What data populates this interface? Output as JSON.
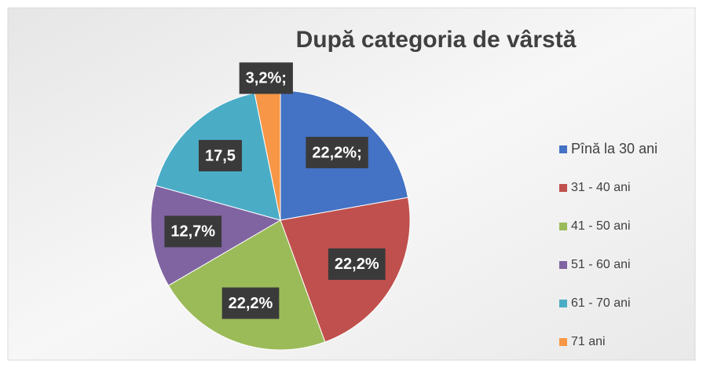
{
  "chart_data": {
    "type": "pie",
    "title": "După categoria de vârstă",
    "categories": [
      "Pînă la 30 ani",
      "31 - 40 ani",
      "41 - 50 ani",
      "51 - 60 ani",
      "61 - 70 ani",
      "71 ani"
    ],
    "values": [
      22.2,
      22.2,
      22.2,
      12.7,
      17.5,
      3.2
    ],
    "value_labels": [
      "22,2%;",
      "22,2%",
      "22,2%",
      "12,7%",
      "17,5",
      "3,2%;"
    ],
    "colors": [
      "#4472c4",
      "#c0504d",
      "#9bbb59",
      "#8064a2",
      "#4bacc6",
      "#f79646"
    ],
    "legend": "right"
  }
}
